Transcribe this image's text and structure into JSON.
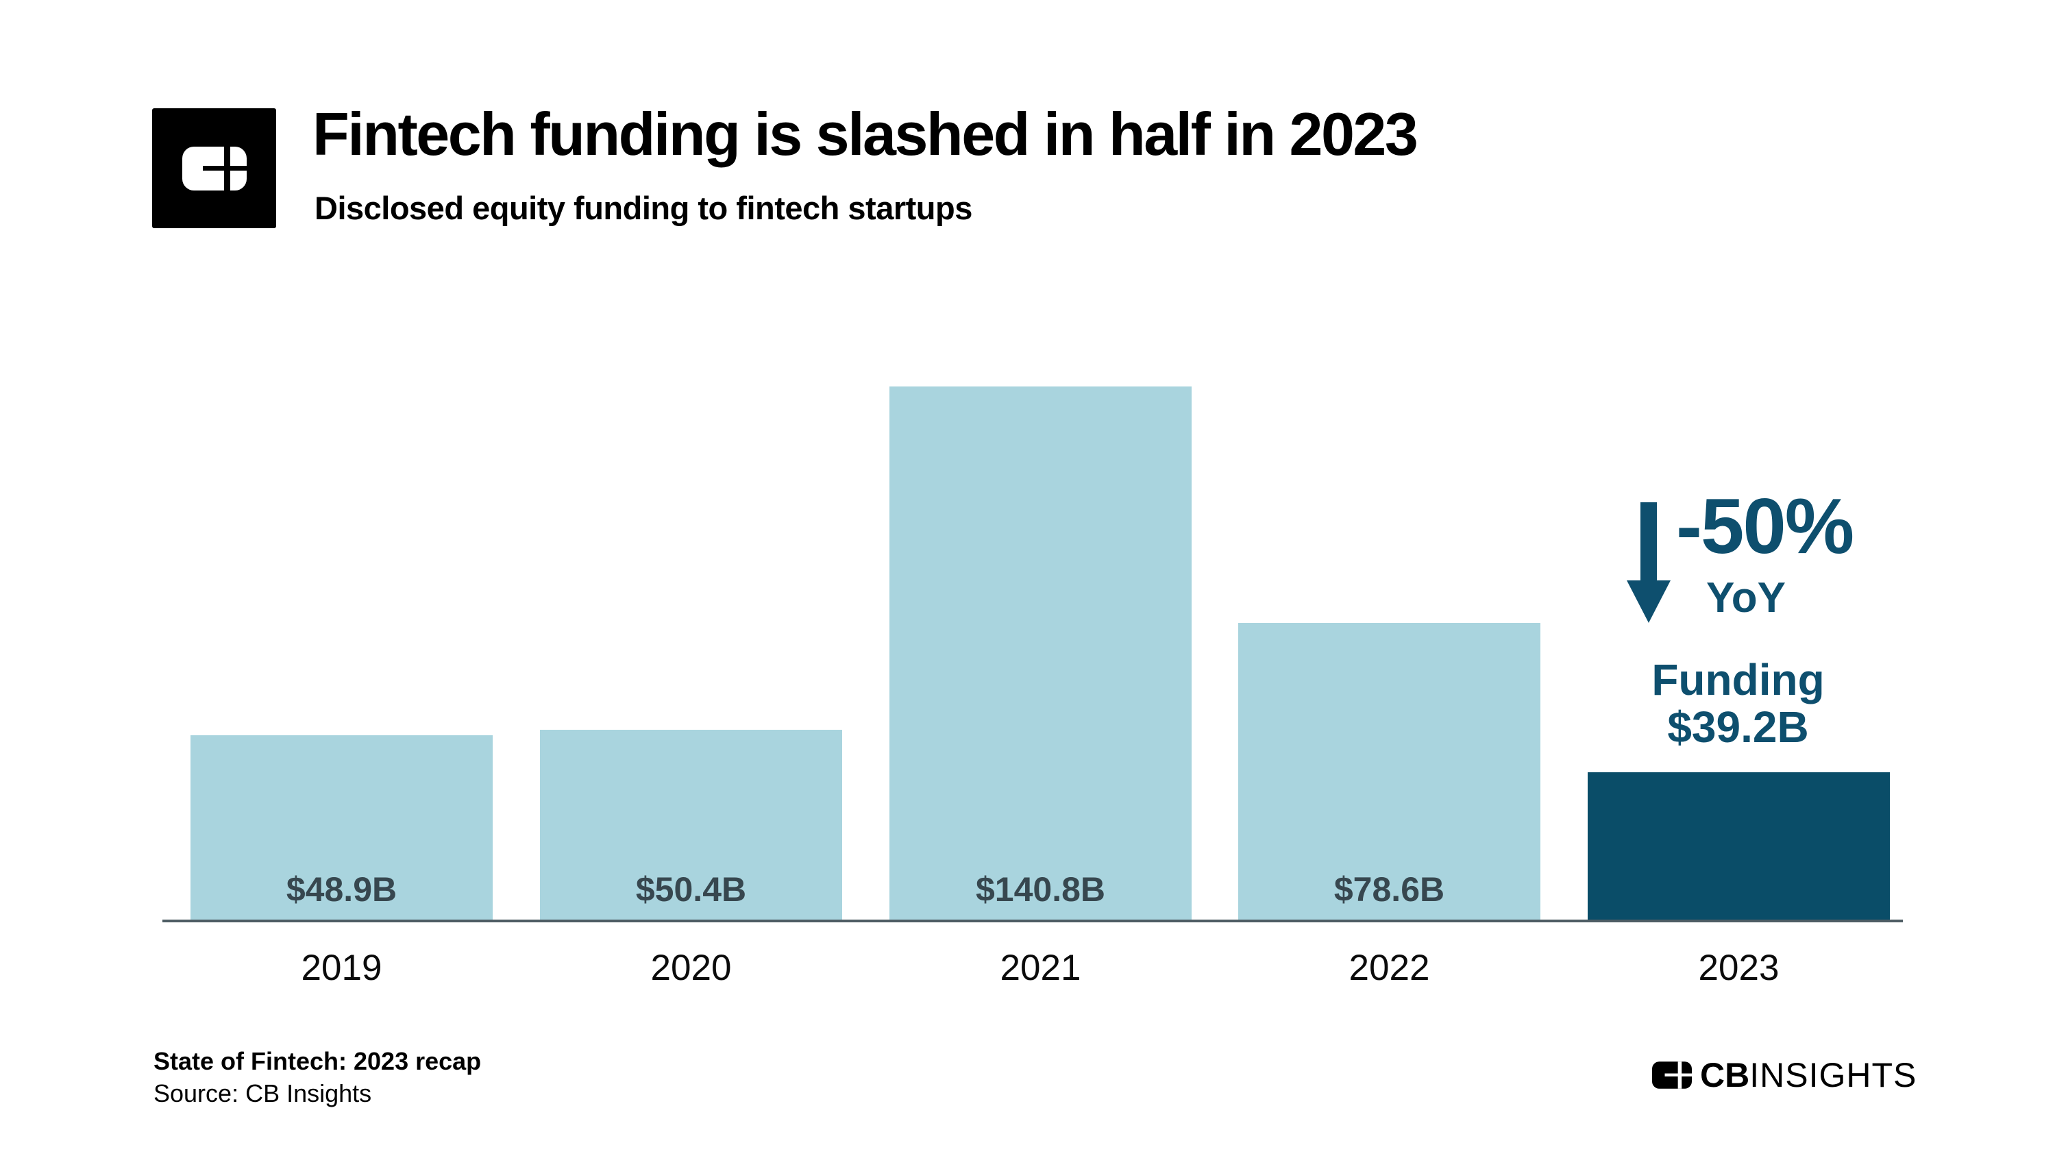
{
  "header": {
    "title": "Fintech funding is slashed in half in 2023",
    "subtitle": "Disclosed equity funding to fintech startups"
  },
  "chart_data": {
    "type": "bar",
    "categories": [
      "2019",
      "2020",
      "2021",
      "2022",
      "2023"
    ],
    "values": [
      48.9,
      50.4,
      140.8,
      78.6,
      39.2
    ],
    "bar_value_labels": [
      "$48.9B",
      "$50.4B",
      "$140.8B",
      "$78.6B",
      null
    ],
    "highlight_index": 4,
    "title": "Fintech funding is slashed in half in 2023",
    "xlabel": "",
    "ylabel": "",
    "ylim": [
      0,
      145
    ],
    "grid": false,
    "legend": false,
    "units": "USD billions",
    "annotation": {
      "delta": "-50%",
      "delta_sub": "YoY",
      "funding_line1": "Funding",
      "funding_line2": "$39.2B",
      "arrow_direction": "down"
    },
    "colors": {
      "bar": "#a9d4de",
      "highlight_bar": "#0a4d68",
      "value_label": "#37474f",
      "annotation_text": "#0e4f6e",
      "axis_line": "#4e5d64"
    }
  },
  "footer": {
    "report": "State of Fintech: 2023 recap",
    "source": "Source: CB Insights",
    "brand_cb": "CB",
    "brand_insights": "INSIGHTS"
  },
  "icons": {
    "logo_mark": "cb-insights-mark",
    "arrow": "down-arrow"
  }
}
